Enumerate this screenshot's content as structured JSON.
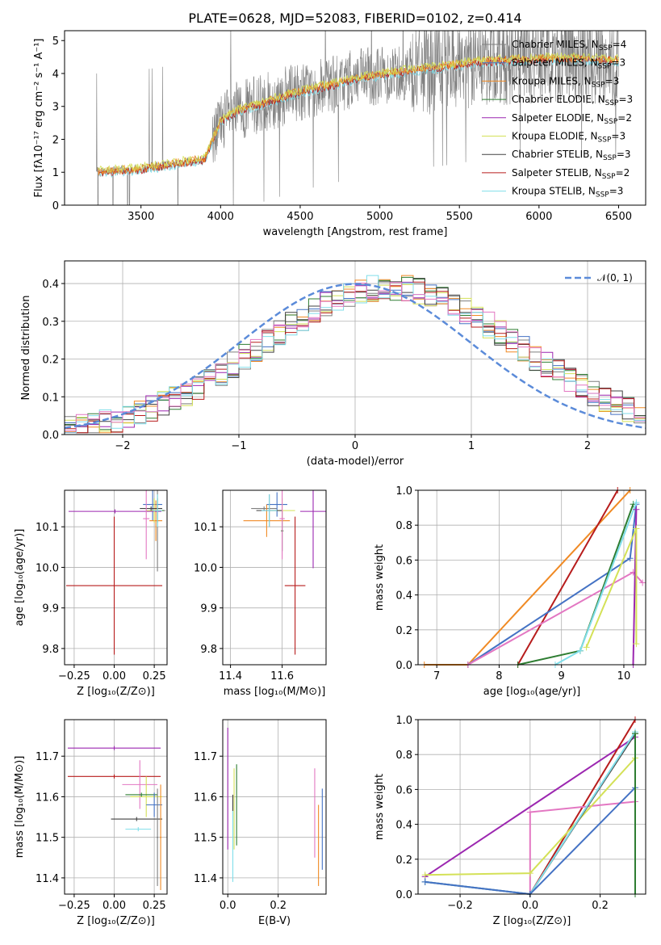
{
  "colors": {
    "Chabrier MILES": "#7f7f7f",
    "Salpeter MILES": "#4472c4",
    "Kroupa MILES": "#f08a24",
    "Chabrier ELODIE": "#2e7d32",
    "Salpeter ELODIE": "#9c27b0",
    "Kroupa ELODIE": "#d4e157",
    "Chabrier STELIB": "#424242",
    "Salpeter STELIB": "#b71c1c",
    "Kroupa STELIB": "#80deea",
    "gauss": "#5b8bd9",
    "pink": "#e377c2"
  },
  "chart_data": [
    {
      "id": "spectrum",
      "type": "line",
      "title": "PLATE=0628, MJD=52083, FIBERID=0102, z=0.414",
      "xlabel": "wavelength [Angstrom, rest frame]",
      "ylabel": "Flux [fλ10⁻¹⁷ erg cm⁻² s⁻¹ A⁻¹]",
      "xlim": [
        3020,
        6670
      ],
      "ylim": [
        0,
        5.3
      ],
      "xticks": [
        "3500",
        "4000",
        "4500",
        "5000",
        "5500",
        "6000",
        "6500"
      ],
      "yticks": [
        "0",
        "1",
        "2",
        "3",
        "4",
        "5"
      ],
      "legend_loc": "upper right",
      "legend": [
        {
          "label": "Chabrier MILES, N",
          "sub": "SSP",
          "tail": "=4"
        },
        {
          "label": "Salpeter MILES, N",
          "sub": "SSP",
          "tail": "=3"
        },
        {
          "label": "Kroupa MILES, N",
          "sub": "SSP",
          "tail": "=3"
        },
        {
          "label": "Chabrier ELODIE, N",
          "sub": "SSP",
          "tail": "=3"
        },
        {
          "label": "Salpeter ELODIE, N",
          "sub": "SSP",
          "tail": "=2"
        },
        {
          "label": "Kroupa ELODIE, N",
          "sub": "SSP",
          "tail": "=3"
        },
        {
          "label": "Chabrier STELIB, N",
          "sub": "SSP",
          "tail": "=3"
        },
        {
          "label": "Salpeter STELIB, N",
          "sub": "SSP",
          "tail": "=2"
        },
        {
          "label": "Kroupa STELIB, N",
          "sub": "SSP",
          "tail": "=3"
        }
      ],
      "continuum": {
        "x": [
          3220,
          3500,
          3700,
          3900,
          4000,
          4100,
          4300,
          4500,
          4700,
          4850,
          5000,
          5200,
          5400,
          5600,
          5800,
          6000,
          6200,
          6500
        ],
        "y": [
          1.0,
          1.1,
          1.25,
          1.4,
          2.55,
          2.85,
          3.15,
          3.45,
          3.65,
          3.85,
          3.95,
          4.1,
          4.2,
          4.35,
          4.4,
          4.45,
          4.45,
          4.4
        ]
      },
      "observed_range": [
        3220,
        6500
      ],
      "model_range": [
        3230,
        6500
      ]
    },
    {
      "id": "residuals",
      "type": "bar",
      "xlabel": "(data-model)/error",
      "ylabel": "Normed distribution",
      "xlim": [
        -2.5,
        2.5
      ],
      "ylim": [
        0,
        0.46
      ],
      "xticks": [
        "−2",
        "−1",
        "0",
        "1",
        "2"
      ],
      "yticks": [
        "0.0",
        "0.1",
        "0.2",
        "0.3",
        "0.4"
      ],
      "legend": "𝒩(0, 1)",
      "bin_width": 0.1
    },
    {
      "id": "age_vs_Z",
      "type": "scatter",
      "xlabel": "Z [log₁₀(Z/Z⊙)]",
      "ylabel": "age  [log₁₀(age/yr)]",
      "xlim": [
        -0.31,
        0.33
      ],
      "ylim": [
        9.76,
        10.19
      ],
      "xticks": [
        "−0.25",
        "0.00",
        "0.25"
      ],
      "yticks": [
        "9.8",
        "9.9",
        "10.0",
        "10.1"
      ],
      "points": [
        {
          "s": "Chabrier MILES",
          "x": 0.27,
          "y": 10.14,
          "xe": 0.05,
          "ye": 0.15
        },
        {
          "s": "Salpeter MILES",
          "x": 0.24,
          "y": 10.155,
          "xe": 0.06,
          "ye": 0.04
        },
        {
          "s": "Kroupa MILES",
          "x": 0.26,
          "y": 10.115,
          "xe": 0.04,
          "ye": 0.05
        },
        {
          "s": "Chabrier ELODIE",
          "x": 0.27,
          "y": 10.14,
          "xe": 0.04,
          "ye": 0.03
        },
        {
          "s": "Salpeter ELODIE",
          "x": 0.005,
          "y": 10.138,
          "xe": 0.29,
          "ye": 0.005
        },
        {
          "s": "Kroupa ELODIE",
          "x": 0.25,
          "y": 10.14,
          "xe": 0.05,
          "ye": 0.03
        },
        {
          "s": "Chabrier STELIB",
          "x": 0.23,
          "y": 10.145,
          "xe": 0.07,
          "ye": 0.005
        },
        {
          "s": "Salpeter STELIB",
          "x": 0.0,
          "y": 9.955,
          "xe": 0.3,
          "ye": 0.17
        },
        {
          "s": "Kroupa STELIB",
          "x": 0.27,
          "y": 10.14,
          "xe": 0.03,
          "ye": 0.04
        },
        {
          "s": "pink",
          "x": 0.2,
          "y": 10.12,
          "xe": 0.02,
          "ye": 0.1
        }
      ]
    },
    {
      "id": "age_vs_mass",
      "type": "scatter",
      "xlabel": "mass [log₁₀(M/M⊙)]",
      "ylabel": "",
      "xlim": [
        11.37,
        11.77
      ],
      "ylim": [
        9.76,
        10.19
      ],
      "xticks": [
        "11.4",
        "11.6"
      ],
      "yticks": [
        "9.8",
        "9.9",
        "10.0",
        "10.1"
      ],
      "points": [
        {
          "s": "Chabrier MILES",
          "x": 11.53,
          "y": 10.145,
          "xe": 0.05,
          "ye": 0.005
        },
        {
          "s": "Salpeter MILES",
          "x": 11.58,
          "y": 10.155,
          "xe": 0.04,
          "ye": 0.03
        },
        {
          "s": "Kroupa MILES",
          "x": 11.54,
          "y": 10.115,
          "xe": 0.09,
          "ye": 0.04
        },
        {
          "s": "Chabrier ELODIE",
          "x": 11.6,
          "y": 10.09,
          "xe": 0.005,
          "ye": 0.05
        },
        {
          "s": "Salpeter ELODIE",
          "x": 11.72,
          "y": 10.138,
          "xe": 0.05,
          "ye": 0.14
        },
        {
          "s": "Kroupa ELODIE",
          "x": 11.6,
          "y": 10.14,
          "xe": 0.05,
          "ye": 0.03
        },
        {
          "s": "Chabrier STELIB",
          "x": 11.55,
          "y": 10.14,
          "xe": 0.05,
          "ye": 0.04
        },
        {
          "s": "Salpeter STELIB",
          "x": 11.65,
          "y": 9.955,
          "xe": 0.04,
          "ye": 0.17
        },
        {
          "s": "Kroupa STELIB",
          "x": 11.55,
          "y": 10.14,
          "xe": 0.03,
          "ye": 0.04
        },
        {
          "s": "pink",
          "x": 11.6,
          "y": 10.12,
          "xe": 0.01,
          "ye": 0.1
        }
      ]
    },
    {
      "id": "mass_weight_vs_age",
      "type": "line",
      "xlabel": "age  [log₁₀(age/yr)]",
      "ylabel": "mass weight",
      "xlim": [
        6.7,
        10.35
      ],
      "ylim": [
        0,
        1.0
      ],
      "xticks": [
        "7",
        "8",
        "9",
        "10"
      ],
      "yticks": [
        "0.0",
        "0.2",
        "0.4",
        "0.6",
        "0.8",
        "1.0"
      ],
      "series": [
        {
          "s": "Kroupa MILES",
          "x": [
            6.8,
            7.5,
            10.1
          ],
          "y": [
            0,
            0,
            1.0
          ]
        },
        {
          "s": "Salpeter STELIB",
          "x": [
            8.3,
            9.9
          ],
          "y": [
            0,
            1.0
          ]
        },
        {
          "s": "Salpeter MILES",
          "x": [
            7.5,
            10.1,
            10.2
          ],
          "y": [
            0,
            0.61,
            0.92
          ]
        },
        {
          "s": "pink",
          "x": [
            7.5,
            10.15,
            10.3
          ],
          "y": [
            0,
            0.53,
            0.47
          ]
        },
        {
          "s": "Chabrier ELODIE",
          "x": [
            8.3,
            9.3,
            10.15
          ],
          "y": [
            0,
            0.08,
            0.92
          ]
        },
        {
          "s": "Kroupa STELIB",
          "x": [
            8.9,
            9.3,
            10.2
          ],
          "y": [
            0,
            0.08,
            0.93
          ]
        },
        {
          "s": "Salpeter ELODIE",
          "x": [
            10.15,
            10.2
          ],
          "y": [
            0.0,
            0.89
          ]
        },
        {
          "s": "Kroupa ELODIE",
          "x": [
            9.4,
            10.2,
            10.2
          ],
          "y": [
            0.1,
            0.78,
            0.12
          ]
        }
      ]
    },
    {
      "id": "mass_vs_Z",
      "type": "scatter",
      "xlabel": "Z [log₁₀(Z/Z⊙)]",
      "ylabel": "mass [log₁₀(M/M⊙)]",
      "xlim": [
        -0.31,
        0.33
      ],
      "ylim": [
        11.36,
        11.79
      ],
      "xticks": [
        "−0.25",
        "0.00",
        "0.25"
      ],
      "yticks": [
        "11.4",
        "11.5",
        "11.6",
        "11.7"
      ],
      "points": [
        {
          "s": "Salpeter ELODIE",
          "x": 0.0,
          "y": 11.72,
          "xe": 0.29,
          "ye": 0.005
        },
        {
          "s": "Salpeter STELIB",
          "x": 0.0,
          "y": 11.65,
          "xe": 0.29,
          "ye": 0.005
        },
        {
          "s": "pink",
          "x": 0.16,
          "y": 11.63,
          "xe": 0.11,
          "ye": 0.06
        },
        {
          "s": "Kroupa ELODIE",
          "x": 0.2,
          "y": 11.6,
          "xe": 0.1,
          "ye": 0.05
        },
        {
          "s": "Chabrier ELODIE",
          "x": 0.17,
          "y": 11.605,
          "xe": 0.1,
          "ye": 0.005
        },
        {
          "s": "Salpeter MILES",
          "x": 0.25,
          "y": 11.58,
          "xe": 0.05,
          "ye": 0.03
        },
        {
          "s": "Chabrier STELIB",
          "x": 0.14,
          "y": 11.545,
          "xe": 0.16,
          "ye": 0.005
        },
        {
          "s": "Kroupa STELIB",
          "x": 0.15,
          "y": 11.52,
          "xe": 0.08,
          "ye": 0.005
        },
        {
          "s": "Kroupa MILES",
          "x": 0.29,
          "y": 11.5,
          "xe": 0.005,
          "ye": 0.13
        },
        {
          "s": "Chabrier MILES",
          "x": 0.27,
          "y": 11.5,
          "xe": 0.005,
          "ye": 0.12
        }
      ]
    },
    {
      "id": "mass_vs_EBV",
      "type": "scatter",
      "xlabel": "E(B-V)",
      "ylabel": "",
      "xlim": [
        -0.02,
        0.39
      ],
      "ylim": [
        11.36,
        11.79
      ],
      "xticks": [
        "0.0",
        "0.2"
      ],
      "yticks": [
        "11.4",
        "11.5",
        "11.6",
        "11.7"
      ],
      "points": [
        {
          "s": "Salpeter ELODIE",
          "x": 0.0,
          "y": 11.62,
          "xe": 0.0,
          "ye": 0.15
        },
        {
          "s": "Kroupa STELIB",
          "x": 0.02,
          "y": 11.49,
          "xe": 0.0,
          "ye": 0.1
        },
        {
          "s": "Kroupa ELODIE",
          "x": 0.025,
          "y": 11.57,
          "xe": 0.0,
          "ye": 0.1
        },
        {
          "s": "Chabrier ELODIE",
          "x": 0.035,
          "y": 11.58,
          "xe": 0.0,
          "ye": 0.1
        },
        {
          "s": "Chabrier STELIB",
          "x": 0.02,
          "y": 11.585,
          "xe": 0.0,
          "ye": 0.02
        },
        {
          "s": "pink",
          "x": 0.345,
          "y": 11.56,
          "xe": 0.0,
          "ye": 0.11
        },
        {
          "s": "Kroupa MILES",
          "x": 0.36,
          "y": 11.48,
          "xe": 0.0,
          "ye": 0.1
        },
        {
          "s": "Salpeter MILES",
          "x": 0.375,
          "y": 11.52,
          "xe": 0.0,
          "ye": 0.1
        }
      ]
    },
    {
      "id": "mass_weight_vs_Z",
      "type": "line",
      "xlabel": "Z [log₁₀(Z/Z⊙)]",
      "ylabel": "mass weight",
      "xlim": [
        -0.32,
        0.33
      ],
      "ylim": [
        0,
        1.0
      ],
      "xticks": [
        "−0.2",
        "0.0",
        "0.2"
      ],
      "yticks": [
        "0.0",
        "0.2",
        "0.4",
        "0.6",
        "0.8",
        "1.0"
      ],
      "series": [
        {
          "s": "Salpeter ELODIE",
          "x": [
            -0.3,
            0.3
          ],
          "y": [
            0.1,
            0.9
          ]
        },
        {
          "s": "Salpeter STELIB",
          "x": [
            0.0,
            0.3
          ],
          "y": [
            0.0,
            1.0
          ]
        },
        {
          "s": "pink",
          "x": [
            0.0,
            0.0,
            0.3
          ],
          "y": [
            0.0,
            0.47,
            0.53
          ]
        },
        {
          "s": "Kroupa ELODIE",
          "x": [
            -0.3,
            0.0,
            0.3
          ],
          "y": [
            0.11,
            0.12,
            0.78
          ]
        },
        {
          "s": "Chabrier STELIB",
          "x": [
            -0.3,
            0.0,
            0.3
          ],
          "y": [
            0.07,
            0.0,
            0.92
          ]
        },
        {
          "s": "Kroupa STELIB",
          "x": [
            -0.3,
            0.0,
            0.3
          ],
          "y": [
            0.07,
            0.0,
            0.93
          ]
        },
        {
          "s": "Salpeter MILES",
          "x": [
            -0.3,
            0.0,
            0.3
          ],
          "y": [
            0.07,
            0.0,
            0.61
          ]
        },
        {
          "s": "Chabrier ELODIE",
          "x": [
            0.3,
            0.3
          ],
          "y": [
            0.0,
            0.92
          ]
        }
      ]
    }
  ]
}
